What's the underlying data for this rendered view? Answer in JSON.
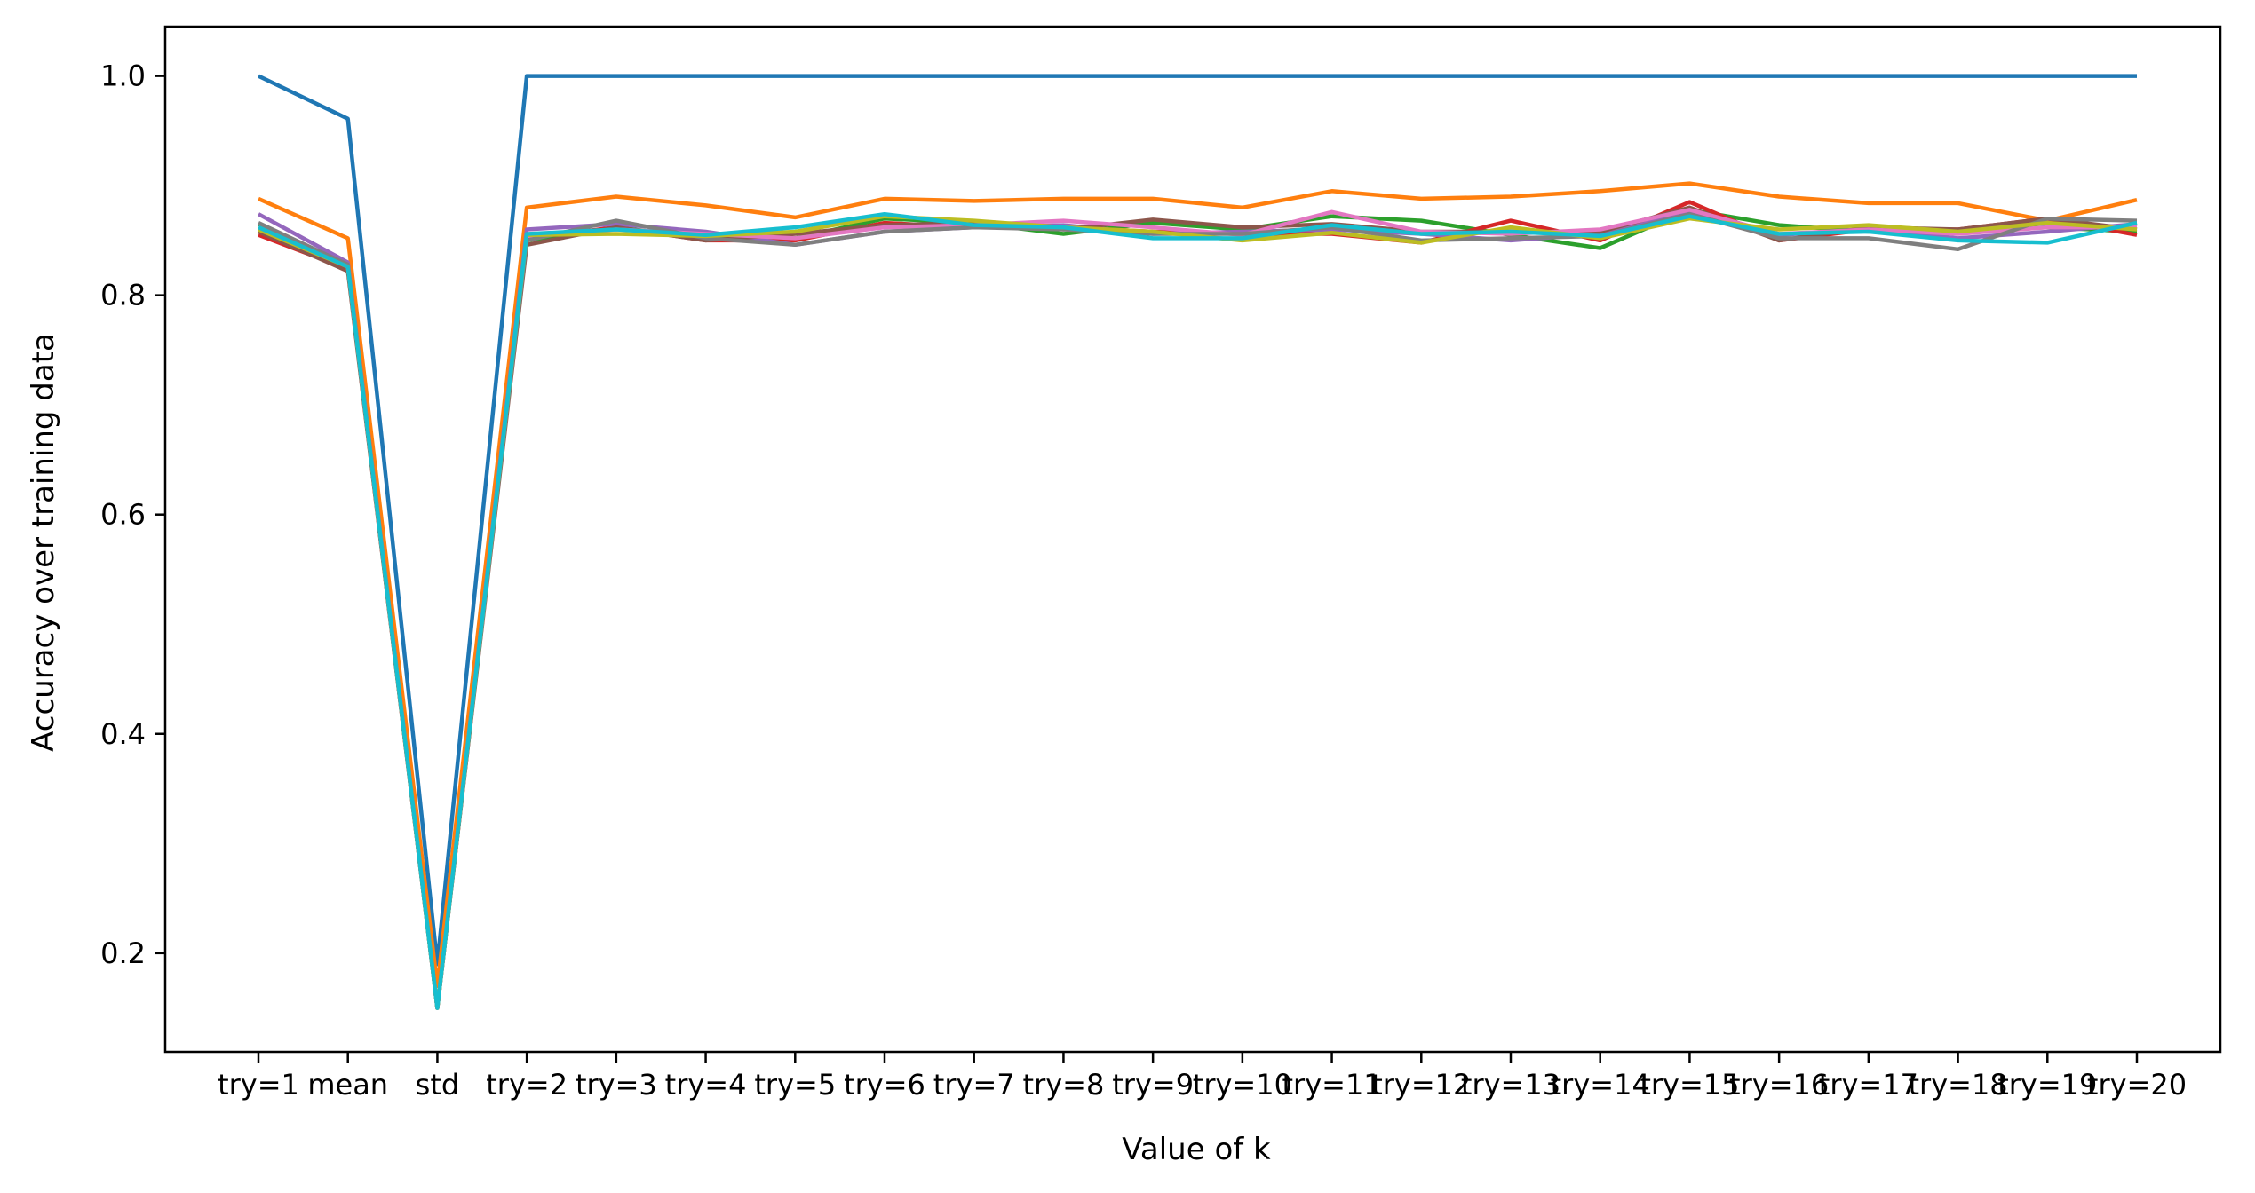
{
  "chart_data": {
    "type": "line",
    "title": "",
    "xlabel": "Value of k",
    "ylabel": "Accuracy over training data",
    "categories": [
      "try=1",
      "mean",
      "std",
      "try=2",
      "try=3",
      "try=4",
      "try=5",
      "try=6",
      "try=7",
      "try=8",
      "try=9",
      "try=10",
      "try=11",
      "try=12",
      "try=13",
      "try=14",
      "try=15",
      "try=16",
      "try=17",
      "try=18",
      "try=19",
      "try=20"
    ],
    "ylim": [
      0.11,
      1.045
    ],
    "yticks": [
      0.2,
      0.4,
      0.6,
      0.8,
      1.0
    ],
    "ytick_labels": [
      "0.2",
      "0.4",
      "0.6",
      "0.8",
      "1.0"
    ],
    "grid": false,
    "legend": "none",
    "series": [
      {
        "color": "#1f77b4",
        "values": [
          1.0,
          0.961,
          0.19,
          1.0,
          1.0,
          1.0,
          1.0,
          1.0,
          1.0,
          1.0,
          1.0,
          1.0,
          1.0,
          1.0,
          1.0,
          1.0,
          1.0,
          1.0,
          1.0,
          1.0,
          1.0,
          1.0
        ]
      },
      {
        "color": "#ff7f0e",
        "values": [
          0.888,
          0.852,
          0.17,
          0.88,
          0.89,
          0.882,
          0.871,
          0.888,
          0.886,
          0.888,
          0.888,
          0.88,
          0.895,
          0.888,
          0.89,
          0.895,
          0.902,
          0.89,
          0.884,
          0.884,
          0.868,
          0.887
        ]
      },
      {
        "color": "#2ca02c",
        "values": [
          0.865,
          0.825,
          0.15,
          0.85,
          0.862,
          0.852,
          0.852,
          0.87,
          0.866,
          0.856,
          0.866,
          0.86,
          0.872,
          0.868,
          0.855,
          0.843,
          0.878,
          0.864,
          0.858,
          0.858,
          0.862,
          0.858
        ]
      },
      {
        "color": "#d62728",
        "values": [
          0.855,
          0.824,
          0.15,
          0.852,
          0.862,
          0.85,
          0.85,
          0.866,
          0.862,
          0.862,
          0.858,
          0.856,
          0.856,
          0.848,
          0.868,
          0.85,
          0.885,
          0.85,
          0.86,
          0.86,
          0.87,
          0.855
        ]
      },
      {
        "color": "#9467bd",
        "values": [
          0.874,
          0.83,
          0.15,
          0.86,
          0.865,
          0.858,
          0.846,
          0.858,
          0.862,
          0.864,
          0.856,
          0.858,
          0.86,
          0.856,
          0.85,
          0.856,
          0.875,
          0.855,
          0.86,
          0.852,
          0.858,
          0.865
        ]
      },
      {
        "color": "#8c564b",
        "values": [
          0.858,
          0.822,
          0.15,
          0.846,
          0.862,
          0.85,
          0.856,
          0.864,
          0.866,
          0.86,
          0.869,
          0.862,
          0.865,
          0.858,
          0.858,
          0.858,
          0.88,
          0.85,
          0.862,
          0.86,
          0.87,
          0.86
        ]
      },
      {
        "color": "#e377c2",
        "values": [
          0.862,
          0.826,
          0.15,
          0.854,
          0.86,
          0.856,
          0.852,
          0.862,
          0.864,
          0.868,
          0.862,
          0.855,
          0.876,
          0.858,
          0.856,
          0.86,
          0.878,
          0.856,
          0.86,
          0.856,
          0.862,
          0.862
        ]
      },
      {
        "color": "#7f7f7f",
        "values": [
          0.866,
          0.828,
          0.15,
          0.85,
          0.868,
          0.852,
          0.846,
          0.858,
          0.862,
          0.86,
          0.856,
          0.856,
          0.862,
          0.85,
          0.852,
          0.854,
          0.874,
          0.852,
          0.852,
          0.842,
          0.87,
          0.868
        ]
      },
      {
        "color": "#bcbd22",
        "values": [
          0.86,
          0.826,
          0.15,
          0.855,
          0.856,
          0.854,
          0.858,
          0.872,
          0.868,
          0.862,
          0.858,
          0.85,
          0.857,
          0.848,
          0.862,
          0.852,
          0.87,
          0.86,
          0.864,
          0.858,
          0.866,
          0.86
        ]
      },
      {
        "color": "#17becf",
        "values": [
          0.862,
          0.826,
          0.15,
          0.856,
          0.86,
          0.855,
          0.862,
          0.874,
          0.864,
          0.862,
          0.852,
          0.852,
          0.864,
          0.856,
          0.858,
          0.854,
          0.872,
          0.856,
          0.858,
          0.85,
          0.848,
          0.866
        ]
      }
    ]
  }
}
